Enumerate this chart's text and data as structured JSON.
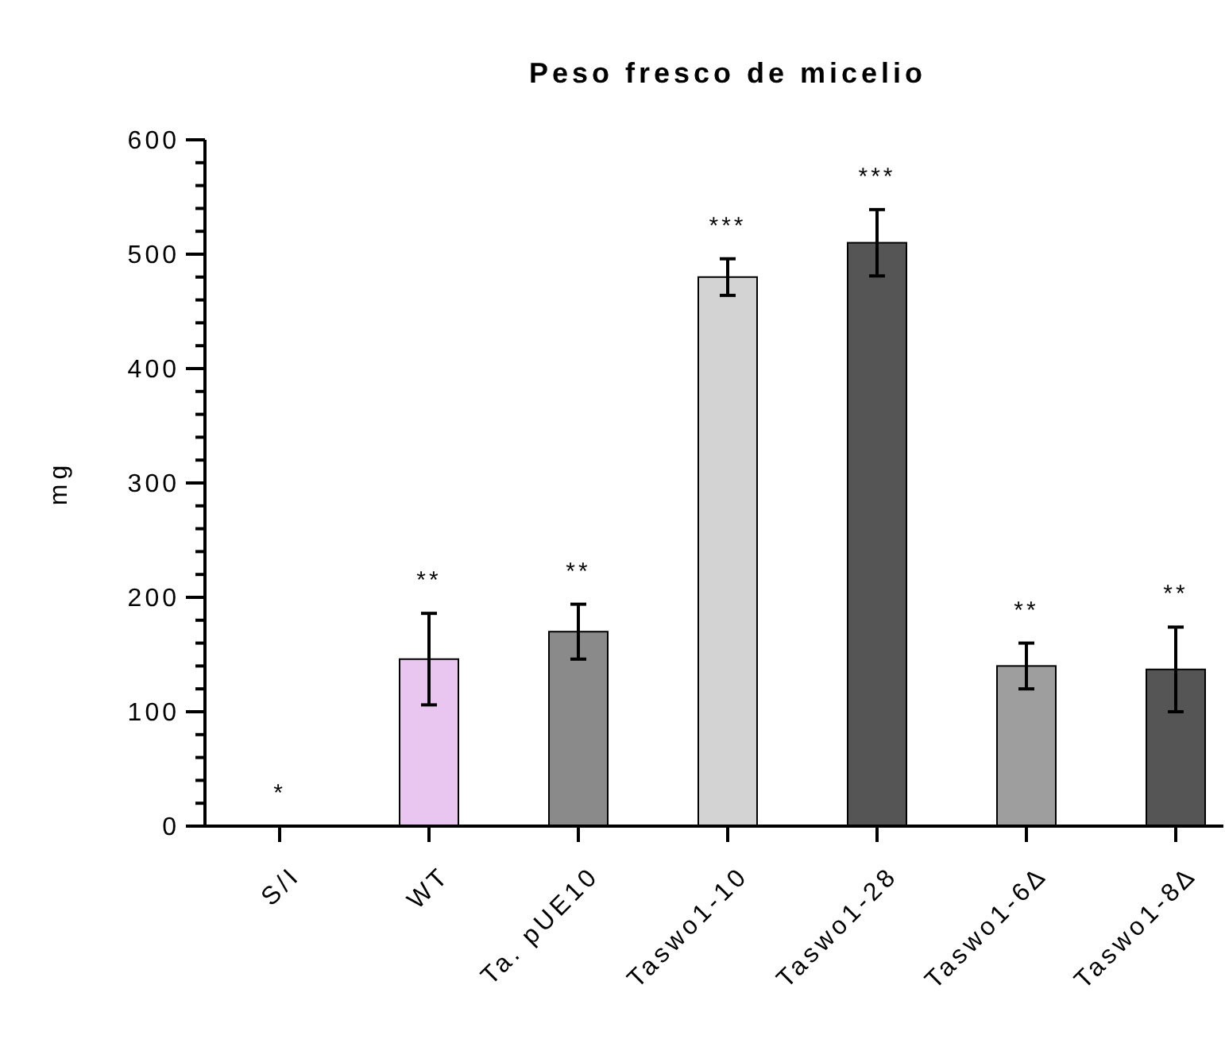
{
  "chart_data": {
    "type": "bar",
    "title": "Peso fresco de micelio",
    "ylabel": "mg",
    "categories": [
      "S/I",
      "WT",
      "Ta. pUE10",
      "Taswo1-10",
      "Taswo1-28",
      "Taswo1-6∆",
      "Taswo1-8∆"
    ],
    "values": [
      0,
      146,
      170,
      480,
      510,
      140,
      137
    ],
    "errors": [
      null,
      40,
      24,
      16,
      29,
      20,
      37
    ],
    "colors": [
      "#ffffff",
      "#e9c6ef",
      "#8a8a8a",
      "#d3d3d3",
      "#555555",
      "#9e9e9e",
      "#555555"
    ],
    "ylim": [
      0,
      600
    ],
    "yticks": [
      0,
      {
        "value": 20,
        "label": null
      },
      {
        "value": 40,
        "label": null
      },
      {
        "value": 60,
        "label": null
      },
      {
        "value": 80,
        "label": null
      },
      100,
      {
        "value": 120,
        "label": null
      },
      {
        "value": 140,
        "label": null
      },
      {
        "value": 160,
        "label": null
      },
      {
        "value": 180,
        "label": null
      },
      200,
      {
        "value": 220,
        "label": null
      },
      {
        "value": 240,
        "label": null
      },
      {
        "value": 260,
        "label": null
      },
      {
        "value": 280,
        "label": null
      },
      300,
      {
        "value": 320,
        "label": null
      },
      {
        "value": 340,
        "label": null
      },
      {
        "value": 360,
        "label": null
      },
      {
        "value": 380,
        "label": null
      },
      400,
      {
        "value": 420,
        "label": null
      },
      {
        "value": 440,
        "label": null
      },
      {
        "value": 460,
        "label": null
      },
      {
        "value": 480,
        "label": null
      },
      500,
      {
        "value": 520,
        "label": null
      },
      {
        "value": 540,
        "label": null
      },
      {
        "value": 560,
        "label": null
      },
      {
        "value": 580,
        "label": null
      },
      600
    ],
    "annotations": [
      "*",
      "**",
      "**",
      "***",
      "***",
      "**",
      "**"
    ],
    "grid": false
  }
}
